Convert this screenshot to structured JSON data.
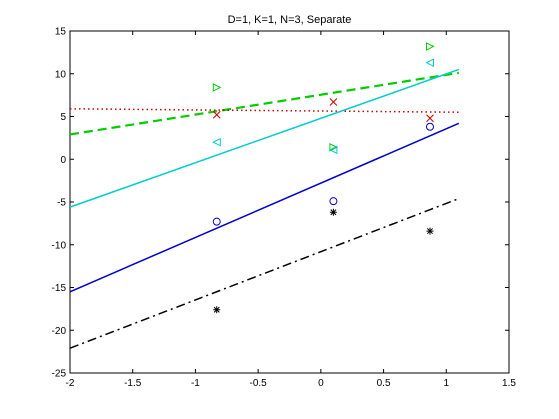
{
  "chart_data": {
    "type": "scatter",
    "title": "D=1, K=1, N=3, Separate",
    "xlabel": "",
    "ylabel": "",
    "xlim": [
      -2,
      1.5
    ],
    "ylim": [
      -25,
      15
    ],
    "x_ticks": [
      -2,
      -1.5,
      -1,
      -0.5,
      0,
      0.5,
      1,
      1.5
    ],
    "y_ticks": [
      -25,
      -20,
      -15,
      -10,
      -5,
      0,
      5,
      10,
      15
    ],
    "x_tick_labels": [
      "-2",
      "-1.5",
      "-1",
      "-0.5",
      "0",
      "0.5",
      "1",
      "1.5"
    ],
    "y_tick_labels": [
      "-25",
      "-20",
      "-15",
      "-10",
      "-5",
      "0",
      "5",
      "10",
      "15"
    ],
    "grid": false,
    "legend": "none",
    "series": [
      {
        "color": "#0000cc",
        "marker": "circle",
        "line_style": "solid",
        "points": [
          [
            -0.83,
            -7.3
          ],
          [
            0.1,
            -4.9
          ],
          [
            0.87,
            3.8
          ]
        ],
        "fit_line": [
          [
            -2,
            -15.5
          ],
          [
            1.1,
            4.2
          ]
        ]
      },
      {
        "color": "#00cc00",
        "marker": "triangle-right",
        "line_style": "dashed",
        "points": [
          [
            -0.83,
            8.4
          ],
          [
            0.1,
            1.4
          ],
          [
            0.87,
            13.2
          ]
        ],
        "fit_line": [
          [
            -2,
            2.9
          ],
          [
            1.1,
            10.1
          ]
        ]
      },
      {
        "color": "#cc0000",
        "marker": "x",
        "line_style": "dotted",
        "points": [
          [
            -0.83,
            5.2
          ],
          [
            0.1,
            6.7
          ],
          [
            0.87,
            4.8
          ]
        ],
        "fit_line": [
          [
            -2,
            5.9
          ],
          [
            1.1,
            5.5
          ]
        ]
      },
      {
        "color": "#00cccc",
        "marker": "triangle-left",
        "line_style": "solid",
        "points": [
          [
            -0.83,
            2.0
          ],
          [
            0.1,
            1.1
          ],
          [
            0.87,
            11.3
          ]
        ],
        "fit_line": [
          [
            -2,
            -5.6
          ],
          [
            1.1,
            10.5
          ]
        ]
      },
      {
        "color": "#000000",
        "marker": "star",
        "line_style": "dashdot",
        "points": [
          [
            -0.83,
            -17.6
          ],
          [
            0.1,
            -6.2
          ],
          [
            0.87,
            -8.4
          ]
        ],
        "fit_line": [
          [
            -2,
            -22.1
          ],
          [
            1.1,
            -4.6
          ]
        ]
      }
    ]
  }
}
